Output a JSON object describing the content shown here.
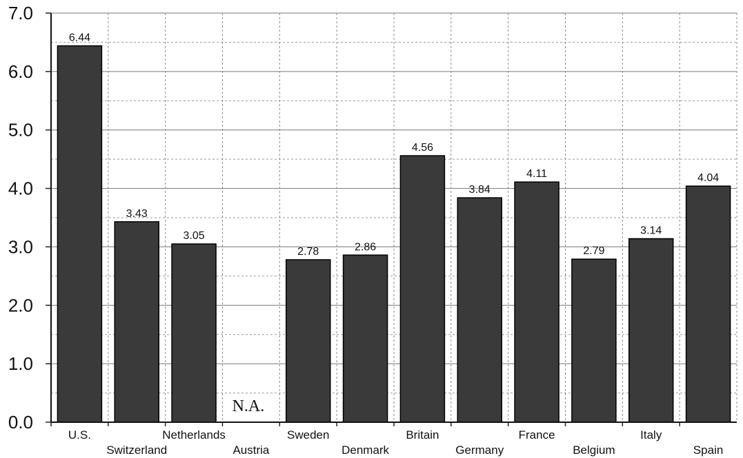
{
  "chart_data": {
    "type": "bar",
    "title": "",
    "xlabel": "",
    "ylabel": "",
    "ylim": [
      0,
      7
    ],
    "yticks": [
      "0.0",
      "1.0",
      "2.0",
      "3.0",
      "4.0",
      "5.0",
      "6.0",
      "7.0"
    ],
    "grid": "on",
    "categories": [
      "U.S.",
      "Switzerland",
      "Netherlands",
      "Austria",
      "Sweden",
      "Denmark",
      "Britain",
      "Germany",
      "France",
      "Belgium",
      "Italy",
      "Spain"
    ],
    "values": [
      6.44,
      3.43,
      3.05,
      null,
      2.78,
      2.86,
      4.56,
      3.84,
      4.11,
      2.79,
      3.14,
      4.04
    ],
    "value_labels": [
      "6.44",
      "3.43",
      "3.05",
      "",
      "2.78",
      "2.86",
      "4.56",
      "3.84",
      "4.11",
      "2.79",
      "3.14",
      "4.04"
    ],
    "missing_label": "N.A.",
    "bar_color": "#3a3a3a"
  }
}
